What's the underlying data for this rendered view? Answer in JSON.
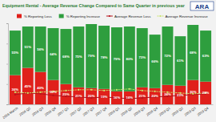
{
  "chart_data": {
    "type": "bar",
    "title": "Equipment Rental - Average Revenue Change Compared to Same Quarter in previous year",
    "annotations": [
      "ARA"
    ],
    "stacked": true,
    "categories": [
      "2016 March",
      "2016 Q2",
      "2016 Q3",
      "2016 Q4",
      "2017 Q1",
      "2017 Q2",
      "2017 Q3",
      "2017 Q4",
      "2018 Q1",
      "2018 Q2",
      "2018 Q3",
      "2018 Q4",
      "2019 Q1",
      "2019 Q2",
      "2019 Q3",
      "2019 Q4"
    ],
    "ylim": [
      0,
      100
    ],
    "yticks": [
      0,
      25,
      50,
      75,
      100
    ],
    "tick_labels": "x",
    "legend": "top",
    "series": [
      {
        "name": "% Reporting Loss",
        "type": "bar",
        "color": "#e0201b",
        "data_labels": true,
        "values": [
          36,
          45,
          40,
          30,
          25,
          21,
          20,
          19,
          16,
          16,
          21,
          20,
          24,
          23,
          30,
          28
        ],
        "value_labels": [
          "36%",
          "45%",
          "40%",
          "30%",
          "25%",
          "21%",
          "20%",
          "19%",
          "16%",
          "16%",
          "21%",
          "20%",
          "24%",
          "23%",
          "30%",
          "28%"
        ]
      },
      {
        "name": "% Reporting Increase",
        "type": "bar",
        "color": "#2e9e3e",
        "data_labels": true,
        "values": [
          55,
          51,
          56,
          64,
          68,
          75,
          79,
          78,
          79,
          80,
          73,
          66,
          72,
          61,
          68,
          63
        ],
        "value_labels": [
          "55%",
          "51%",
          "56%",
          "64%",
          "68%",
          "75%",
          "79%",
          "78%",
          "79%",
          "80%",
          "73%",
          "66%",
          "72%",
          "61%",
          "68%",
          "63%"
        ]
      },
      {
        "name": "Average Revenue Loss",
        "type": "line",
        "color": "#b5121b",
        "line_style": "solid",
        "marker": "circle",
        "data_labels": false,
        "values": [
          12,
          14,
          13,
          11,
          10,
          9,
          8,
          9,
          8,
          7,
          8,
          9,
          10,
          11,
          12,
          13
        ]
      },
      {
        "name": "Average Revenue Increase",
        "type": "line",
        "color": "#c9e36b",
        "line_style": "dashed",
        "marker": "circle",
        "data_labels": false,
        "values": [
          15,
          14,
          15,
          16,
          17,
          18,
          18,
          17,
          18,
          19,
          17,
          16,
          15,
          14,
          13,
          14
        ]
      }
    ]
  }
}
